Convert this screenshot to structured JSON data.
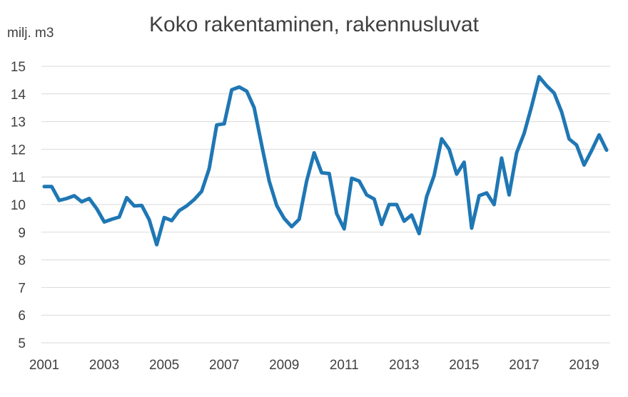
{
  "chart_data": {
    "type": "line",
    "title": "Koko rakentaminen, rakennusluvat",
    "ylabel": "milj. m3",
    "xlabel": "",
    "ylim": [
      5,
      15
    ],
    "yticks": [
      "5",
      "6",
      "7",
      "8",
      "9",
      "10",
      "11",
      "12",
      "13",
      "14",
      "15"
    ],
    "xticks": [
      "2001",
      "2003",
      "2005",
      "2007",
      "2009",
      "2011",
      "2013",
      "2015",
      "2017",
      "2019"
    ],
    "xlim": [
      2001.0,
      2019.75
    ],
    "grid": true,
    "legend": "none",
    "series": [
      {
        "color": "#1f77b4",
        "x": [
          2001.0,
          2001.25,
          2001.5,
          2001.75,
          2002.0,
          2002.25,
          2002.5,
          2002.75,
          2003.0,
          2003.25,
          2003.5,
          2003.75,
          2004.0,
          2004.25,
          2004.5,
          2004.75,
          2005.0,
          2005.25,
          2005.5,
          2005.75,
          2006.0,
          2006.25,
          2006.5,
          2006.75,
          2007.0,
          2007.25,
          2007.5,
          2007.75,
          2008.0,
          2008.25,
          2008.5,
          2008.75,
          2009.0,
          2009.25,
          2009.5,
          2009.75,
          2010.0,
          2010.25,
          2010.5,
          2010.75,
          2011.0,
          2011.25,
          2011.5,
          2011.75,
          2012.0,
          2012.25,
          2012.5,
          2012.75,
          2013.0,
          2013.25,
          2013.5,
          2013.75,
          2014.0,
          2014.25,
          2014.5,
          2014.75,
          2015.0,
          2015.25,
          2015.5,
          2015.75,
          2016.0,
          2016.25,
          2016.5,
          2016.75,
          2017.0,
          2017.25,
          2017.5,
          2017.75,
          2018.0,
          2018.25,
          2018.5,
          2018.75,
          2019.0,
          2019.25,
          2019.5,
          2019.75
        ],
        "values": [
          10.65,
          10.65,
          10.15,
          10.22,
          10.32,
          10.1,
          10.22,
          9.85,
          9.37,
          9.47,
          9.55,
          10.25,
          9.95,
          9.97,
          9.45,
          8.55,
          9.53,
          9.42,
          9.78,
          9.95,
          10.18,
          10.48,
          11.3,
          12.88,
          12.92,
          14.15,
          14.25,
          14.1,
          13.5,
          12.15,
          10.85,
          9.97,
          9.5,
          9.2,
          9.47,
          10.85,
          11.87,
          11.15,
          11.12,
          9.67,
          9.12,
          10.95,
          10.85,
          10.35,
          10.2,
          9.28,
          10.0,
          10.0,
          9.4,
          9.62,
          8.95,
          10.28,
          11.05,
          12.38,
          12.0,
          11.1,
          11.53,
          9.15,
          10.32,
          10.42,
          10.0,
          11.68,
          10.35,
          11.87,
          12.57,
          13.55,
          14.62,
          14.3,
          14.03,
          13.35,
          12.37,
          12.15,
          11.43,
          11.95,
          12.52,
          11.97
        ]
      }
    ]
  }
}
